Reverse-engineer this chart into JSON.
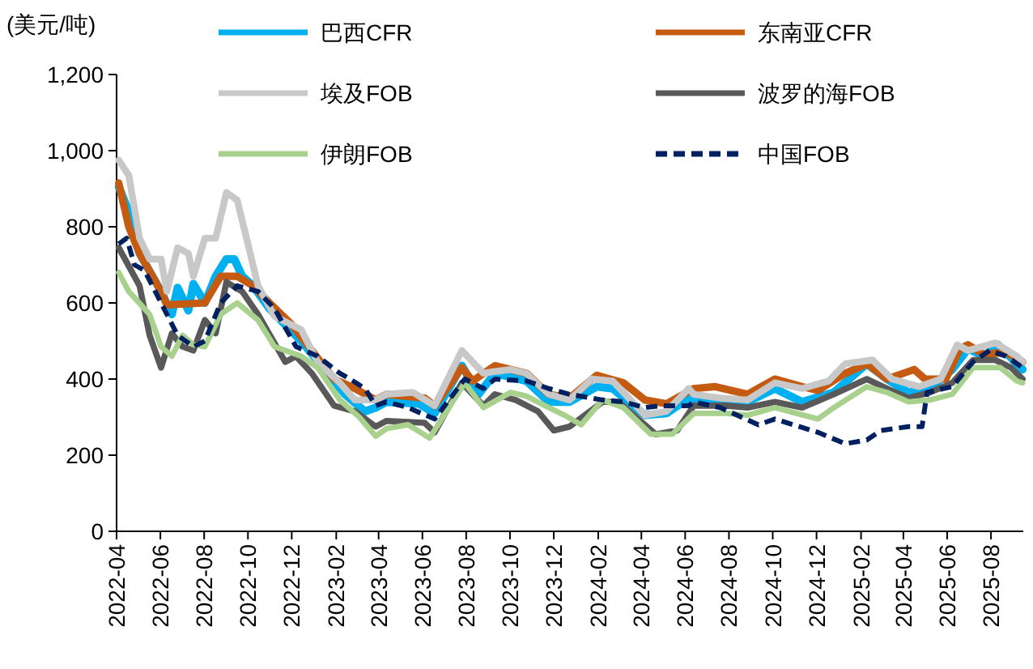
{
  "chart_data": {
    "type": "line",
    "ylabel": "(美元/吨)",
    "legend": "top",
    "xlim": [
      "2022-04-01",
      "2025-09-15"
    ],
    "ylim": [
      0,
      1200
    ],
    "xticks": [
      "2022-04",
      "2022-06",
      "2022-08",
      "2022-10",
      "2022-12",
      "2023-02",
      "2023-04",
      "2023-06",
      "2023-08",
      "2023-10",
      "2023-12",
      "2024-02",
      "2024-04",
      "2024-06",
      "2024-08",
      "2024-10",
      "2024-12",
      "2025-02",
      "2025-04",
      "2025-06",
      "2025-08"
    ],
    "yticks": [
      0,
      200,
      400,
      600,
      800,
      {
        "value": 1000,
        "label": "1,000"
      },
      {
        "value": 1200,
        "label": "1,200"
      }
    ],
    "series": [
      {
        "name": "巴西CFR",
        "color": "#00b0f0",
        "x": [
          "2022-04-04",
          "2022-04-18",
          "2022-05-03",
          "2022-06-02",
          "2022-06-17",
          "2022-06-25",
          "2022-07-10",
          "2022-07-17",
          "2022-08-02",
          "2022-08-17",
          "2022-09-01",
          "2022-09-12",
          "2022-09-23",
          "2022-10-08",
          "2022-10-31",
          "2022-12-14",
          "2023-01-14",
          "2023-02-13",
          "2023-03-13",
          "2023-03-28",
          "2023-04-12",
          "2023-05-27",
          "2023-06-18",
          "2023-07-26",
          "2023-08-18",
          "2023-09-10",
          "2023-10-24",
          "2023-11-24",
          "2023-12-23",
          "2024-01-30",
          "2024-02-21",
          "2024-04-06",
          "2024-05-06",
          "2024-06-06",
          "2024-06-13",
          "2024-07-28",
          "2024-08-27",
          "2024-10-04",
          "2024-11-11",
          "2024-12-25",
          "2025-02-09",
          "2025-03-09",
          "2025-04-08",
          "2025-05-08",
          "2025-06-08",
          "2025-06-30",
          "2025-07-22",
          "2025-08-11",
          "2025-09-14"
        ],
        "values": [
          905,
          840,
          730,
          630,
          570,
          640,
          580,
          650,
          600,
          670,
          715,
          715,
          670,
          645,
          585,
          500,
          430,
          360,
          315,
          325,
          340,
          335,
          310,
          435,
          360,
          415,
          395,
          340,
          340,
          380,
          375,
          305,
          310,
          350,
          345,
          345,
          340,
          375,
          340,
          365,
          440,
          400,
          365,
          375,
          425,
          480,
          460,
          490,
          425
        ]
      },
      {
        "name": "东南亚CFR",
        "color": "#c55a11",
        "x": [
          "2022-04-04",
          "2022-04-18",
          "2022-05-03",
          "2022-06-02",
          "2022-06-10",
          "2022-08-02",
          "2022-08-24",
          "2022-09-16",
          "2022-10-08",
          "2022-10-31",
          "2022-11-30",
          "2022-12-29",
          "2023-01-29",
          "2023-02-27",
          "2023-03-28",
          "2023-04-12",
          "2023-06-04",
          "2023-06-18",
          "2023-07-26",
          "2023-08-10",
          "2023-09-10",
          "2023-10-24",
          "2023-11-24",
          "2023-12-23",
          "2024-01-30",
          "2024-03-07",
          "2024-04-06",
          "2024-05-06",
          "2024-06-13",
          "2024-07-13",
          "2024-08-27",
          "2024-10-04",
          "2024-11-11",
          "2024-12-03",
          "2025-01-10",
          "2025-02-09",
          "2025-03-09",
          "2025-04-16",
          "2025-05-01",
          "2025-05-30",
          "2025-06-19",
          "2025-06-30",
          "2025-07-22",
          "2025-08-22",
          "2025-09-14"
        ],
        "values": [
          915,
          800,
          730,
          630,
          595,
          600,
          670,
          670,
          645,
          600,
          545,
          475,
          400,
          375,
          345,
          360,
          350,
          330,
          430,
          395,
          435,
          415,
          360,
          350,
          410,
          390,
          345,
          335,
          375,
          380,
          360,
          400,
          380,
          370,
          415,
          440,
          400,
          425,
          400,
          400,
          480,
          490,
          465,
          470,
          445
        ]
      },
      {
        "name": "埃及FOB",
        "color": "#c8c8c8",
        "x": [
          "2022-04-04",
          "2022-04-18",
          "2022-05-03",
          "2022-05-17",
          "2022-06-02",
          "2022-06-10",
          "2022-06-25",
          "2022-07-10",
          "2022-07-17",
          "2022-08-02",
          "2022-08-17",
          "2022-09-01",
          "2022-09-16",
          "2022-10-01",
          "2022-10-15",
          "2022-11-07",
          "2022-12-14",
          "2023-01-06",
          "2023-02-06",
          "2023-02-27",
          "2023-03-28",
          "2023-04-12",
          "2023-05-19",
          "2023-06-18",
          "2023-07-26",
          "2023-08-25",
          "2023-09-10",
          "2023-10-02",
          "2023-10-24",
          "2023-11-24",
          "2023-12-23",
          "2024-01-23",
          "2024-02-21",
          "2024-04-06",
          "2024-05-06",
          "2024-06-06",
          "2024-06-13",
          "2024-07-20",
          "2024-08-27",
          "2024-10-04",
          "2024-11-11",
          "2024-12-18",
          "2025-01-10",
          "2025-02-17",
          "2025-03-16",
          "2025-04-23",
          "2025-05-23",
          "2025-06-15",
          "2025-06-30",
          "2025-08-07",
          "2025-09-06",
          "2025-09-14"
        ],
        "values": [
          975,
          935,
          770,
          715,
          715,
          630,
          745,
          730,
          670,
          770,
          770,
          890,
          870,
          755,
          645,
          565,
          530,
          445,
          390,
          345,
          345,
          360,
          365,
          330,
          475,
          415,
          420,
          425,
          415,
          360,
          345,
          400,
          395,
          305,
          315,
          375,
          360,
          350,
          345,
          390,
          375,
          395,
          440,
          450,
          400,
          380,
          400,
          490,
          475,
          495,
          460,
          445
        ]
      },
      {
        "name": "波罗的海FOB",
        "color": "#595959",
        "x": [
          "2022-04-04",
          "2022-05-03",
          "2022-05-17",
          "2022-06-02",
          "2022-06-17",
          "2022-07-02",
          "2022-07-17",
          "2022-08-02",
          "2022-08-17",
          "2022-09-01",
          "2022-09-23",
          "2022-10-15",
          "2022-11-22",
          "2022-12-07",
          "2022-12-29",
          "2023-01-29",
          "2023-02-27",
          "2023-03-28",
          "2023-04-12",
          "2023-06-04",
          "2023-06-18",
          "2023-07-26",
          "2023-08-25",
          "2023-09-10",
          "2023-10-09",
          "2023-11-09",
          "2023-12-01",
          "2023-12-23",
          "2024-02-07",
          "2024-02-29",
          "2024-04-21",
          "2024-05-21",
          "2024-06-13",
          "2024-07-28",
          "2024-08-27",
          "2024-10-04",
          "2024-11-11",
          "2024-12-25",
          "2025-02-09",
          "2025-03-09",
          "2025-04-08",
          "2025-05-08",
          "2025-06-08",
          "2025-07-07",
          "2025-08-07",
          "2025-08-29",
          "2025-09-14"
        ],
        "values": [
          745,
          645,
          515,
          430,
          520,
          485,
          475,
          555,
          520,
          655,
          630,
          570,
          445,
          460,
          415,
          330,
          315,
          275,
          290,
          285,
          260,
          390,
          330,
          360,
          345,
          315,
          265,
          275,
          340,
          340,
          255,
          265,
          330,
          330,
          325,
          340,
          325,
          360,
          400,
          375,
          350,
          365,
          390,
          450,
          450,
          430,
          400
        ]
      },
      {
        "name": "伊朗FOB",
        "color": "#a9d18e",
        "x": [
          "2022-04-04",
          "2022-04-18",
          "2022-05-17",
          "2022-06-02",
          "2022-06-17",
          "2022-07-02",
          "2022-07-17",
          "2022-08-02",
          "2022-08-24",
          "2022-09-16",
          "2022-10-15",
          "2022-11-07",
          "2022-12-14",
          "2023-01-06",
          "2023-02-06",
          "2023-03-05",
          "2023-03-28",
          "2023-04-12",
          "2023-05-12",
          "2023-06-11",
          "2023-07-30",
          "2023-08-25",
          "2023-10-02",
          "2023-10-24",
          "2023-11-24",
          "2023-12-16",
          "2024-01-08",
          "2024-02-07",
          "2024-03-07",
          "2024-04-14",
          "2024-05-14",
          "2024-06-13",
          "2024-07-28",
          "2024-08-27",
          "2024-10-04",
          "2024-12-03",
          "2024-12-25",
          "2025-02-09",
          "2025-03-09",
          "2025-04-08",
          "2025-05-08",
          "2025-06-08",
          "2025-07-07",
          "2025-08-14",
          "2025-09-06",
          "2025-09-14"
        ],
        "values": [
          680,
          630,
          570,
          485,
          460,
          515,
          490,
          485,
          570,
          600,
          555,
          485,
          460,
          430,
          345,
          300,
          250,
          270,
          280,
          245,
          390,
          325,
          365,
          355,
          325,
          305,
          280,
          345,
          325,
          255,
          255,
          310,
          310,
          305,
          325,
          295,
          325,
          380,
          365,
          340,
          345,
          360,
          430,
          430,
          395,
          390
        ]
      },
      {
        "name": "中国FOB",
        "color": "#002060",
        "line_style": "dashed",
        "x": [
          "2022-04-04",
          "2022-04-15",
          "2022-04-26",
          "2022-05-10",
          "2022-06-02",
          "2022-06-25",
          "2022-07-17",
          "2022-08-02",
          "2022-08-24",
          "2022-09-16",
          "2022-10-15",
          "2022-11-07",
          "2022-12-07",
          "2023-01-06",
          "2023-02-06",
          "2023-02-20",
          "2023-03-13",
          "2023-03-28",
          "2023-04-12",
          "2023-05-12",
          "2023-06-18",
          "2023-07-30",
          "2023-08-25",
          "2023-09-10",
          "2023-10-24",
          "2023-11-24",
          "2023-12-23",
          "2024-02-07",
          "2024-03-07",
          "2024-04-06",
          "2024-04-29",
          "2024-06-06",
          "2024-06-13",
          "2024-07-20",
          "2024-09-11",
          "2024-10-04",
          "2024-12-03",
          "2025-01-10",
          "2025-02-09",
          "2025-03-01",
          "2025-04-08",
          "2025-04-27",
          "2025-05-04",
          "2025-06-08",
          "2025-07-07",
          "2025-07-30",
          "2025-08-22",
          "2025-09-14"
        ],
        "values": [
          755,
          770,
          700,
          685,
          600,
          515,
          485,
          500,
          600,
          645,
          630,
          585,
          485,
          460,
          415,
          400,
          375,
          330,
          340,
          325,
          295,
          400,
          375,
          400,
          395,
          375,
          360,
          345,
          340,
          325,
          330,
          330,
          340,
          325,
          280,
          295,
          260,
          230,
          240,
          265,
          275,
          275,
          365,
          380,
          445,
          475,
          460,
          430
        ]
      }
    ]
  }
}
